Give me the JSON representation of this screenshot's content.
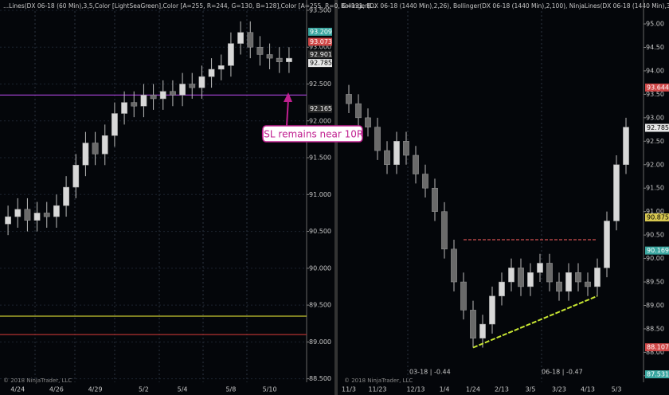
{
  "chart_data": [
    {
      "type": "candlestick",
      "title": "...Lines(DX 06-18 (60 Min),3,5,Color [LightSeaGreen],Color [A=255, R=244, G=130, B=128],Color [A=255, R=0, G=131, B...",
      "copyright": "© 2018 NinjaTrader, LLC",
      "categories": [
        null,
        "4/24",
        null,
        null,
        null,
        "4/26",
        null,
        null,
        null,
        "4/29",
        null,
        null,
        null,
        null,
        "5/2",
        null,
        null,
        null,
        "5/4",
        null,
        null,
        null,
        null,
        "5/8",
        null,
        null,
        null,
        "5/10",
        null,
        null
      ],
      "open": [
        90.6,
        90.7,
        90.8,
        90.65,
        90.75,
        90.7,
        90.85,
        91.1,
        91.4,
        91.7,
        91.55,
        91.8,
        92.1,
        92.25,
        92.2,
        92.35,
        92.3,
        92.4,
        92.35,
        92.5,
        92.45,
        92.6,
        92.7,
        92.75,
        93.05,
        93.2,
        93.0,
        92.9,
        92.85,
        92.8
      ],
      "high": [
        90.85,
        90.95,
        90.95,
        90.9,
        90.9,
        91.0,
        91.25,
        91.55,
        91.85,
        91.85,
        91.95,
        92.25,
        92.4,
        92.4,
        92.5,
        92.5,
        92.55,
        92.55,
        92.65,
        92.65,
        92.75,
        92.85,
        92.9,
        93.2,
        93.35,
        93.35,
        93.15,
        93.05,
        93.0,
        93.0
      ],
      "low": [
        90.45,
        90.55,
        90.5,
        90.5,
        90.55,
        90.55,
        90.7,
        90.95,
        91.25,
        91.4,
        91.4,
        91.65,
        91.95,
        92.05,
        92.05,
        92.15,
        92.15,
        92.2,
        92.2,
        92.3,
        92.3,
        92.45,
        92.55,
        92.6,
        92.9,
        92.85,
        92.75,
        92.7,
        92.65,
        92.65
      ],
      "close": [
        90.7,
        90.8,
        90.65,
        90.75,
        90.7,
        90.85,
        91.1,
        91.4,
        91.7,
        91.55,
        91.8,
        92.1,
        92.25,
        92.2,
        92.35,
        92.3,
        92.4,
        92.35,
        92.5,
        92.45,
        92.6,
        92.7,
        92.75,
        93.05,
        93.2,
        93.0,
        92.9,
        92.85,
        92.8,
        92.85
      ],
      "up_color": "#d8d8d8",
      "down_color": "#6a6a6a",
      "ylim": [
        88.28,
        93.64
      ],
      "yticks": [
        {
          "value": 88.5,
          "label": "88.500"
        },
        {
          "value": 89,
          "label": "89.000"
        },
        {
          "value": 89.5,
          "label": "89.500"
        },
        {
          "value": 90,
          "label": "90.000"
        },
        {
          "value": 90.5,
          "label": "90.500"
        },
        {
          "value": 91,
          "label": "91.000"
        },
        {
          "value": 91.5,
          "label": "91.500"
        },
        {
          "value": 92,
          "label": "92.000"
        },
        {
          "value": 92.5,
          "label": "92.500"
        },
        {
          "value": 93,
          "label": "93.000"
        },
        {
          "value": 93.5,
          "label": "93.500"
        }
      ],
      "grid": true,
      "levels": [
        {
          "value": 92.35,
          "color": "#9b3fc8"
        },
        {
          "value": 89.35,
          "color": "#c8c832"
        },
        {
          "value": 89.1,
          "color": "#b03030"
        }
      ],
      "price_markers": [
        {
          "value": 93.209,
          "color": "#3aa6a0"
        },
        {
          "value": 93.073,
          "color": "#d04848"
        },
        {
          "value": 92.901,
          "color": "#2a2a2a"
        },
        {
          "value": 92.785,
          "color": "#e8e8e8"
        },
        {
          "value": 92.165,
          "color": "#2a2a2a"
        }
      ]
    },
    {
      "type": "candlestick",
      "title": "Bollinger(DX 06-18 (1440 Min),2,26), Bollinger(DX 06-18 (1440 Min),2,100), NinjaLines(DX 06-18 (1440 Min),3,5,Color [...",
      "copyright": "© 2018 NinjaTrader, LLC",
      "notes": [
        "03-18 | -0.44",
        "06-18 | -0.47"
      ],
      "categories": [
        "11/3",
        null,
        null,
        "11/23",
        null,
        null,
        null,
        "12/13",
        null,
        null,
        "1/4",
        null,
        null,
        "1/24",
        null,
        null,
        "2/13",
        null,
        null,
        "3/5",
        null,
        null,
        "3/23",
        null,
        null,
        "4/13",
        null,
        null,
        "5/3",
        null
      ],
      "open": [
        93.5,
        93.3,
        93.0,
        92.8,
        92.3,
        92.0,
        92.5,
        92.2,
        91.8,
        91.5,
        91.0,
        90.2,
        89.5,
        88.9,
        88.3,
        88.6,
        89.2,
        89.5,
        89.8,
        89.4,
        89.7,
        89.9,
        89.5,
        89.3,
        89.7,
        89.5,
        89.4,
        89.8,
        90.8,
        92.0
      ],
      "high": [
        93.7,
        93.5,
        93.2,
        93.0,
        92.5,
        92.7,
        92.7,
        92.4,
        92.0,
        91.7,
        91.2,
        90.4,
        89.7,
        89.1,
        88.8,
        89.4,
        89.7,
        90.0,
        90.0,
        89.9,
        90.1,
        90.1,
        89.7,
        89.9,
        89.9,
        89.7,
        90.0,
        91.0,
        92.2,
        93.0
      ],
      "low": [
        93.1,
        92.8,
        92.6,
        92.1,
        91.8,
        91.8,
        92.0,
        91.6,
        91.3,
        90.8,
        90.0,
        89.3,
        88.7,
        88.1,
        88.1,
        88.4,
        89.0,
        89.3,
        89.2,
        89.2,
        89.5,
        89.3,
        89.1,
        89.1,
        89.3,
        89.2,
        89.2,
        89.6,
        90.6,
        91.8
      ],
      "close": [
        93.3,
        93.0,
        92.8,
        92.3,
        92.0,
        92.5,
        92.2,
        91.8,
        91.5,
        91.0,
        90.2,
        89.5,
        88.9,
        88.3,
        88.6,
        89.2,
        89.5,
        89.8,
        89.4,
        89.7,
        89.9,
        89.5,
        89.3,
        89.7,
        89.5,
        89.4,
        89.8,
        90.8,
        92.0,
        92.8
      ],
      "up_color": "#d8d8d8",
      "down_color": "#6a6a6a",
      "ylim": [
        87.09,
        95.51
      ],
      "yticks": [
        {
          "value": 87.5,
          "label": "87.50"
        },
        {
          "value": 88,
          "label": "88.00"
        },
        {
          "value": 88.5,
          "label": "88.50"
        },
        {
          "value": 89,
          "label": "89.00"
        },
        {
          "value": 89.5,
          "label": "89.50"
        },
        {
          "value": 90,
          "label": "90.00"
        },
        {
          "value": 90.5,
          "label": "90.50"
        },
        {
          "value": 91,
          "label": "91.00"
        },
        {
          "value": 91.5,
          "label": "91.50"
        },
        {
          "value": 92,
          "label": "92.00"
        },
        {
          "value": 92.5,
          "label": "92.50"
        },
        {
          "value": 93,
          "label": "93.00"
        },
        {
          "value": 93.5,
          "label": "93.50"
        },
        {
          "value": 94,
          "label": "94.00"
        },
        {
          "value": 94.5,
          "label": "94.50"
        },
        {
          "value": 95,
          "label": "95.00"
        }
      ],
      "grid": false,
      "levels": [
        {
          "value": 90.4,
          "color": "#d05050",
          "x": [
            12,
            26
          ]
        }
      ],
      "trendline": {
        "x": [
          13,
          26
        ],
        "y": [
          88.1,
          89.2
        ],
        "color": "#c8e632"
      },
      "price_markers": [
        {
          "value": 93.644,
          "color": "#d04848"
        },
        {
          "value": 92.785,
          "color": "#e8e8e8"
        },
        {
          "value": 90.875,
          "color": "#d8c850"
        },
        {
          "value": 90.169,
          "color": "#3aa6a0"
        },
        {
          "value": 88.107,
          "color": "#d04848"
        },
        {
          "value": 87.531,
          "color": "#3aa6a0"
        }
      ]
    }
  ],
  "annotation": "ISL remains near 10R"
}
